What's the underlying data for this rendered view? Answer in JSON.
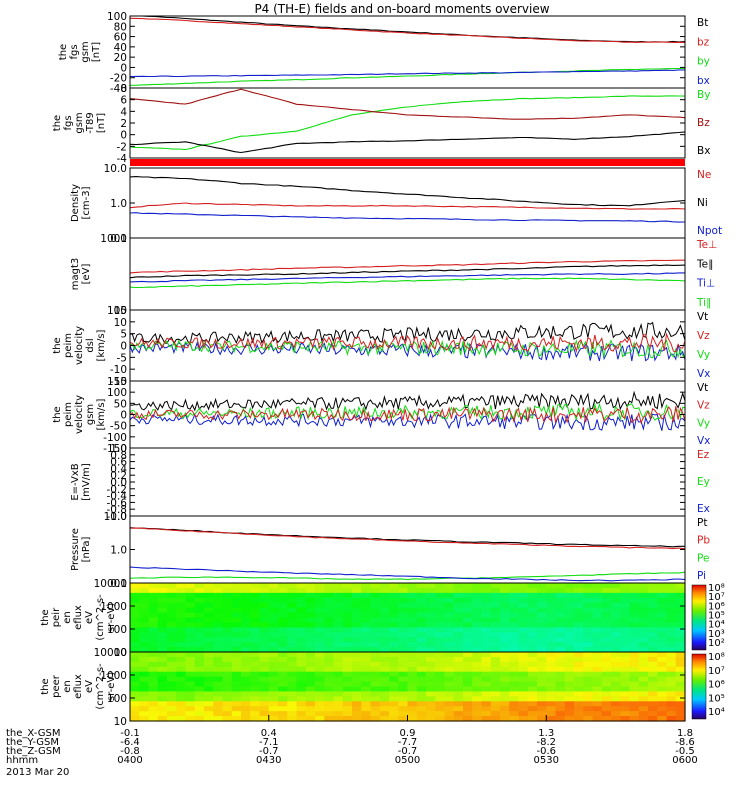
{
  "title": "P4 (TH-E) fields and on-board moments overview",
  "x_ticks": [
    "0400",
    "0430",
    "0500",
    "0530",
    "0600"
  ],
  "ephemeris": {
    "rows": [
      {
        "label": "the_X-GSM",
        "values": [
          "-0.1",
          "0.4",
          "0.9",
          "1.3",
          "1.8"
        ]
      },
      {
        "label": "the_Y-GSM",
        "values": [
          "-6.4",
          "-7.1",
          "-7.7",
          "-8.2",
          "-8.6"
        ]
      },
      {
        "label": "the_Z-GSM",
        "values": [
          "-0.8",
          "-0.7",
          "-0.7",
          "-0.6",
          "-0.5"
        ]
      },
      {
        "label": "hhmm",
        "values": [
          "0400",
          "0430",
          "0500",
          "0530",
          "0600"
        ]
      }
    ],
    "date": "2013 Mar 20"
  },
  "colors": {
    "black": "#000000",
    "red": "#d42020",
    "green": "#11dd11",
    "blue": "#1020cc",
    "darkred": "#a01010",
    "orange": "#ff8800"
  },
  "chart_data": [
    {
      "type": "line",
      "ylabel": [
        "the",
        "fgs",
        "gsm",
        "[nT]"
      ],
      "ylim": [
        -40,
        100
      ],
      "y_ticks": [
        "100",
        "80",
        "60",
        "40",
        "20",
        "0",
        "-20",
        "-40"
      ],
      "legend": [
        "Bt",
        "bz",
        "by",
        "bx"
      ],
      "series": [
        {
          "name": "Bt",
          "color": "#000000",
          "values": [
            102,
            95,
            88,
            81,
            75,
            69,
            63,
            58,
            53,
            50,
            50
          ]
        },
        {
          "name": "bz",
          "color": "#d42020",
          "values": [
            96,
            91,
            85,
            79,
            73,
            67,
            62,
            57,
            52,
            49,
            49
          ]
        },
        {
          "name": "by",
          "color": "#11dd11",
          "values": [
            -35,
            -31,
            -27,
            -24,
            -20,
            -17,
            -13,
            -10,
            -7,
            -4,
            -2
          ]
        },
        {
          "name": "bx",
          "color": "#1020cc",
          "values": [
            -18,
            -17,
            -16,
            -15,
            -14,
            -12,
            -11,
            -10,
            -8,
            -7,
            -5
          ]
        }
      ]
    },
    {
      "type": "line",
      "ylabel": [
        "the",
        "fgs",
        "gsm",
        "-T89",
        "[nT]"
      ],
      "ylim": [
        -5,
        8
      ],
      "y_ticks": [
        "8",
        "6",
        "4",
        "2",
        "0",
        "-2",
        "-4"
      ],
      "legend": [
        "By",
        "Bz",
        "Bx"
      ],
      "series": [
        {
          "name": "By",
          "color": "#11dd11",
          "values": [
            -3,
            -3.4,
            -1,
            0,
            3,
            4.5,
            5.5,
            6,
            6.2,
            6.5,
            6.5
          ]
        },
        {
          "name": "Bz",
          "color": "#a01010",
          "values": [
            6,
            5,
            7.8,
            5,
            4,
            3,
            2.6,
            2.2,
            2.4,
            3,
            2.5
          ]
        },
        {
          "name": "Bx",
          "color": "#000000",
          "values": [
            -2.5,
            -2,
            -4,
            -2.3,
            -2,
            -1.8,
            -1.5,
            -1.2,
            -1.5,
            -1,
            -0.2
          ]
        }
      ]
    },
    {
      "type": "line",
      "scale": "log",
      "ylabel": [
        "Density",
        "[cm-3]"
      ],
      "ylim": [
        0.1,
        15
      ],
      "y_ticks": [
        "10.0",
        "1.0",
        "0.1"
      ],
      "legend": [
        "Ne",
        "Ni",
        "Npot"
      ],
      "series": [
        {
          "name": "Ne",
          "color": "#d42020",
          "values": [
            0.9,
            1.2,
            1.1,
            1.0,
            1.0,
            1.0,
            0.95,
            0.9,
            0.85,
            0.8,
            0.8
          ]
        },
        {
          "name": "Ni",
          "color": "#000000",
          "values": [
            8,
            7,
            5,
            4,
            3,
            2.3,
            1.8,
            1.4,
            1.1,
            1.0,
            1.5
          ]
        },
        {
          "name": "Npot",
          "color": "#1020cc",
          "values": [
            0.6,
            0.55,
            0.5,
            0.45,
            0.42,
            0.4,
            0.38,
            0.36,
            0.35,
            0.34,
            0.32
          ]
        }
      ]
    },
    {
      "type": "line",
      "scale": "log",
      "ylabel": [
        "magt3",
        "[eV]"
      ],
      "ylim": [
        100,
        10000
      ],
      "y_ticks": [
        "1000",
        "100"
      ],
      "legend": [
        "Te⊥",
        "Te∥",
        "Ti⊥",
        "Ti∥"
      ],
      "series": [
        {
          "name": "Te⊥",
          "color": "#d42020",
          "values": [
            1100,
            1200,
            1300,
            1450,
            1550,
            1700,
            1800,
            2000,
            2200,
            2300,
            2400
          ]
        },
        {
          "name": "Te∥",
          "color": "#000000",
          "values": [
            800,
            900,
            950,
            1000,
            1100,
            1200,
            1300,
            1400,
            1600,
            1700,
            1800
          ]
        },
        {
          "name": "Ti⊥",
          "color": "#1020cc",
          "values": [
            600,
            650,
            700,
            750,
            800,
            850,
            900,
            950,
            1000,
            1000,
            1050
          ]
        },
        {
          "name": "Ti∥",
          "color": "#11dd11",
          "values": [
            420,
            460,
            500,
            550,
            600,
            650,
            700,
            750,
            750,
            700,
            650
          ]
        }
      ]
    },
    {
      "type": "line",
      "noise": true,
      "ylabel": [
        "the",
        "peim",
        "velocity",
        "dsl",
        "[km/s]"
      ],
      "ylim": [
        -15,
        15
      ],
      "y_ticks": [
        "15",
        "10",
        "5",
        "0",
        "-5",
        "-10",
        "-15"
      ],
      "legend": [
        "Vt",
        "Vz",
        "Vy",
        "Vx"
      ],
      "series": [
        {
          "name": "Vt",
          "color": "#000000",
          "values": [
            3,
            3,
            3.5,
            4,
            4,
            4.5,
            5,
            5.5,
            6,
            6,
            6
          ]
        },
        {
          "name": "Vx",
          "color": "#1020cc",
          "values": [
            -1,
            -1,
            -1.5,
            -1.5,
            -2,
            -2,
            -2.5,
            -2.5,
            -3,
            -3,
            -3
          ]
        },
        {
          "name": "Vy",
          "color": "#11dd11",
          "values": [
            0,
            0,
            -0.5,
            -0.5,
            -1,
            -1,
            -1,
            -1.5,
            -1.5,
            -1.5,
            -1.5
          ]
        },
        {
          "name": "Vz",
          "color": "#d42020",
          "values": [
            1,
            1,
            1,
            1,
            1,
            1,
            1,
            1,
            1,
            1,
            1
          ]
        }
      ]
    },
    {
      "type": "line",
      "noise": true,
      "ylabel": [
        "the",
        "peim",
        "velocity",
        "gsm",
        "[km/s]"
      ],
      "ylim": [
        -150,
        150
      ],
      "y_ticks": [
        "150",
        "100",
        "50",
        "0",
        "-50",
        "-100",
        "-150"
      ],
      "legend": [
        "Vt",
        "Vz",
        "Vy",
        "Vx"
      ],
      "series": [
        {
          "name": "Vt",
          "color": "#000000",
          "values": [
            40,
            42,
            45,
            48,
            50,
            52,
            55,
            58,
            60,
            62,
            62
          ]
        },
        {
          "name": "Vx",
          "color": "#1020cc",
          "values": [
            -20,
            -22,
            -25,
            -25,
            -28,
            -30,
            -30,
            -32,
            -35,
            -35,
            -35
          ]
        },
        {
          "name": "Vy",
          "color": "#11dd11",
          "values": [
            5,
            5,
            5,
            8,
            8,
            10,
            10,
            12,
            12,
            12,
            12
          ]
        },
        {
          "name": "Vz",
          "color": "#d42020",
          "values": [
            0,
            0,
            0,
            0,
            0,
            0,
            0,
            0,
            0,
            0,
            0
          ]
        }
      ]
    },
    {
      "type": "line",
      "ylabel": [
        "E=-VxB",
        "[mV/m]"
      ],
      "ylim": [
        -1,
        1
      ],
      "y_ticks": [
        "1.0",
        "0.8",
        "0.6",
        "0.4",
        "0.2",
        "0.0",
        "-0.2",
        "-0.4",
        "-0.6",
        "-0.8",
        "-1.0"
      ],
      "legend": [
        "Ez",
        "Ey",
        "Ex"
      ],
      "series": []
    },
    {
      "type": "line",
      "scale": "log",
      "ylabel": [
        "Pressure",
        "[nPa]"
      ],
      "ylim": [
        0.09,
        15
      ],
      "y_ticks": [
        "10.0",
        "1.0",
        "0.1"
      ],
      "legend": [
        "Pt",
        "Pb",
        "Pe",
        "Pi"
      ],
      "series": [
        {
          "name": "Pt",
          "color": "#000000",
          "values": [
            6.2,
            5,
            4,
            3.3,
            2.8,
            2.4,
            2.1,
            1.9,
            1.7,
            1.55,
            1.45
          ]
        },
        {
          "name": "Pb",
          "color": "#d42020",
          "values": [
            6.0,
            4.8,
            3.9,
            3.1,
            2.6,
            2.2,
            1.9,
            1.7,
            1.5,
            1.35,
            1.25
          ]
        },
        {
          "name": "Pe",
          "color": "#11dd11",
          "values": [
            0.13,
            0.14,
            0.14,
            0.13,
            0.12,
            0.12,
            0.13,
            0.14,
            0.16,
            0.18,
            0.2
          ]
        },
        {
          "name": "Pi",
          "color": "#1020cc",
          "values": [
            0.3,
            0.26,
            0.22,
            0.19,
            0.17,
            0.15,
            0.13,
            0.12,
            0.11,
            0.11,
            0.12
          ]
        }
      ]
    },
    {
      "type": "heatmap",
      "ylabel": [
        "the",
        "peir",
        "en",
        "eflux",
        "eV",
        "(cm^2-s-",
        "sr-eV)"
      ],
      "y_ticks": [
        "10000",
        "1000",
        "100",
        "10"
      ],
      "colorbar_ticks": [
        "10⁸",
        "10⁷",
        "10⁶",
        "10⁵",
        "10⁴",
        "10³",
        "10²"
      ],
      "log_flux_by_time": [
        5.3,
        5.2,
        5.1,
        5.0,
        4.9,
        4.8,
        4.7,
        4.6,
        4.6,
        4.7,
        4.8
      ]
    },
    {
      "type": "heatmap",
      "ylabel": [
        "the",
        "peer",
        "en",
        "eflux",
        "eV",
        "(cm^2-s-",
        "sr-eV)"
      ],
      "y_ticks": [
        "10000",
        "1000",
        "100",
        "10"
      ],
      "colorbar_ticks": [
        "10⁸",
        "10⁷",
        "10⁶",
        "10⁵",
        "10⁴"
      ],
      "log_flux_by_time": [
        6.9,
        6.9,
        7.0,
        7.0,
        7.1,
        7.1,
        7.2,
        7.3,
        7.4,
        7.4,
        7.5
      ]
    }
  ]
}
